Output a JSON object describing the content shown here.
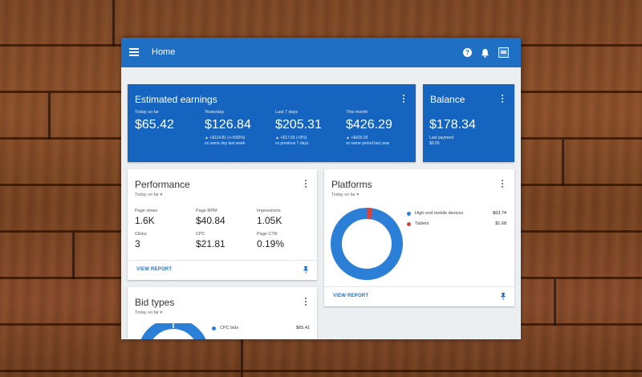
{
  "app": {
    "title": "Home"
  },
  "colors": {
    "appbar": "#1f6fc5",
    "card_blue": "#1565c0",
    "donut_blue": "#2b7fd6",
    "donut_red": "#d9443a",
    "link": "#1f6fc5"
  },
  "icons": [
    "menu-icon",
    "help-icon",
    "bell-icon",
    "avatar",
    "more-vert-icon",
    "pin-icon"
  ],
  "earnings": {
    "title": "Estimated earnings",
    "metrics": [
      {
        "label": "Today so far",
        "value": "$65.42",
        "sub1": "",
        "sub2": ""
      },
      {
        "label": "Yesterday",
        "value": "$126.84",
        "sub1": "▲ +$114.81 (+>500%)",
        "sub2": "vs same day last week"
      },
      {
        "label": "Last 7 days",
        "value": "$205.31",
        "sub1": "▲ +$17.65 (+9%)",
        "sub2": "vs previous 7 days"
      },
      {
        "label": "This month",
        "value": "$426.29",
        "sub1": "▲ +$426.29",
        "sub2": "vs same period last year"
      }
    ]
  },
  "balance": {
    "title": "Balance",
    "value": "$178.34",
    "sub_label": "Last payment",
    "sub_value": "$0.00"
  },
  "performance": {
    "title": "Performance",
    "range": "Today so far",
    "stats": [
      {
        "label": "Page views",
        "value": "1.6K"
      },
      {
        "label": "Page RPM",
        "value": "$40.84"
      },
      {
        "label": "Impressions",
        "value": "1.05K"
      },
      {
        "label": "Clicks",
        "value": "3"
      },
      {
        "label": "CPC",
        "value": "$21.81"
      },
      {
        "label": "Page CTR",
        "value": "0.19%"
      }
    ],
    "view_report": "VIEW REPORT"
  },
  "platforms": {
    "title": "Platforms",
    "range": "Today so far",
    "legend": [
      {
        "name": "High-end mobile devices",
        "value": "$63.74",
        "color": "#2b7fd6"
      },
      {
        "name": "Tablets",
        "value": "$1.68",
        "color": "#d9443a"
      }
    ],
    "view_report": "VIEW REPORT"
  },
  "bid_types": {
    "title": "Bid types",
    "range": "Today so far",
    "legend": [
      {
        "name": "CPC bids",
        "value": "$65.41",
        "color": "#2b7fd6"
      }
    ]
  }
}
